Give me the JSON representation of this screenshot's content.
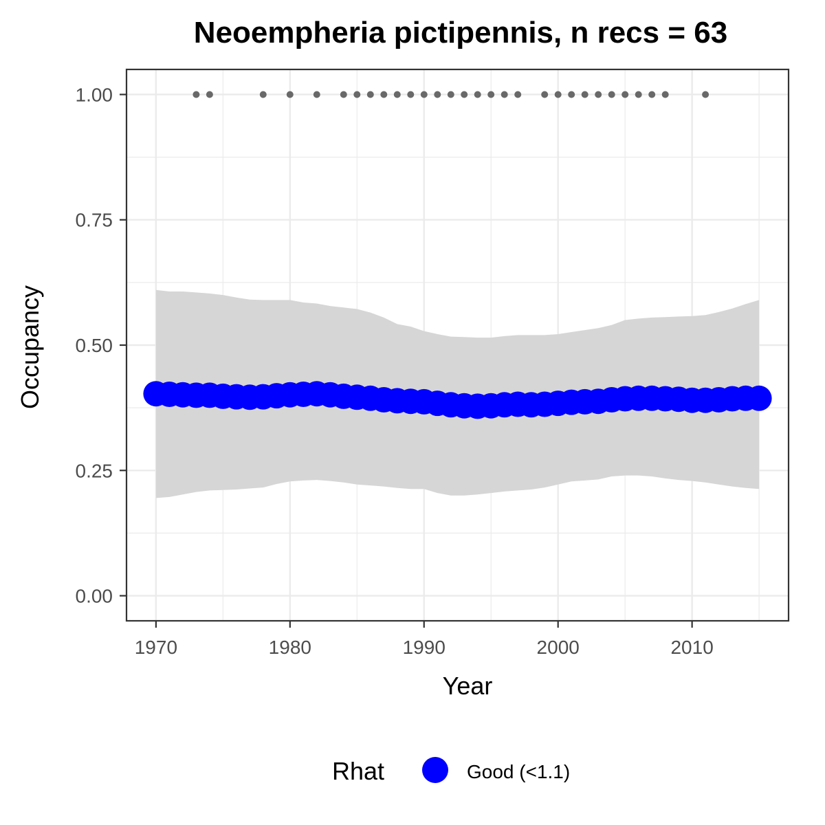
{
  "chart_data": {
    "type": "line",
    "title": "Neoempheria pictipennis, n recs = 63",
    "xlabel": "Year",
    "ylabel": "Occupancy",
    "xlim": [
      1967.8,
      2017.2
    ],
    "ylim": [
      -0.05,
      1.05
    ],
    "x_ticks": [
      1970,
      1980,
      1990,
      2000,
      2010
    ],
    "x_tick_labels": [
      "1970",
      "1980",
      "1990",
      "2000",
      "2010"
    ],
    "y_ticks": [
      0,
      0.25,
      0.5,
      0.75,
      1.0
    ],
    "y_tick_labels": [
      "0.00",
      "0.25",
      "0.50",
      "0.75",
      "1.00"
    ],
    "grid": true,
    "legend": {
      "title": "Rhat",
      "placement": "bottom",
      "entries": [
        {
          "label": "Good (<1.1)",
          "color": "#0000ff"
        }
      ]
    },
    "x": [
      1970,
      1971,
      1972,
      1973,
      1974,
      1975,
      1976,
      1977,
      1978,
      1979,
      1980,
      1981,
      1982,
      1983,
      1984,
      1985,
      1986,
      1987,
      1988,
      1989,
      1990,
      1991,
      1992,
      1993,
      1994,
      1995,
      1996,
      1997,
      1998,
      1999,
      2000,
      2001,
      2002,
      2003,
      2004,
      2005,
      2006,
      2007,
      2008,
      2009,
      2010,
      2011,
      2012,
      2013,
      2014,
      2015
    ],
    "series": [
      {
        "name": "Good (<1.1)",
        "color": "#0000ff",
        "values": [
          0.403,
          0.402,
          0.401,
          0.4,
          0.4,
          0.398,
          0.397,
          0.396,
          0.397,
          0.399,
          0.401,
          0.402,
          0.403,
          0.401,
          0.398,
          0.396,
          0.394,
          0.391,
          0.389,
          0.388,
          0.387,
          0.384,
          0.381,
          0.379,
          0.378,
          0.379,
          0.381,
          0.382,
          0.381,
          0.382,
          0.384,
          0.386,
          0.387,
          0.388,
          0.391,
          0.393,
          0.394,
          0.394,
          0.393,
          0.392,
          0.39,
          0.39,
          0.391,
          0.393,
          0.394,
          0.394
        ]
      }
    ],
    "ribbon": {
      "color": "#d6d6d6",
      "lower": [
        0.195,
        0.197,
        0.202,
        0.207,
        0.21,
        0.211,
        0.212,
        0.214,
        0.216,
        0.223,
        0.228,
        0.23,
        0.231,
        0.229,
        0.226,
        0.222,
        0.22,
        0.218,
        0.215,
        0.213,
        0.213,
        0.205,
        0.2,
        0.2,
        0.202,
        0.205,
        0.208,
        0.21,
        0.212,
        0.216,
        0.222,
        0.228,
        0.23,
        0.232,
        0.238,
        0.24,
        0.24,
        0.238,
        0.234,
        0.231,
        0.229,
        0.226,
        0.222,
        0.218,
        0.215,
        0.213
      ],
      "upper": [
        0.61,
        0.607,
        0.607,
        0.605,
        0.603,
        0.6,
        0.595,
        0.591,
        0.59,
        0.59,
        0.59,
        0.585,
        0.583,
        0.578,
        0.575,
        0.572,
        0.565,
        0.555,
        0.542,
        0.537,
        0.528,
        0.522,
        0.517,
        0.516,
        0.515,
        0.515,
        0.518,
        0.52,
        0.52,
        0.52,
        0.522,
        0.526,
        0.53,
        0.534,
        0.54,
        0.55,
        0.553,
        0.555,
        0.556,
        0.557,
        0.558,
        0.56,
        0.566,
        0.573,
        0.582,
        0.59
      ]
    },
    "records": {
      "color": "#696969",
      "y": 1.0,
      "x": [
        1973,
        1974,
        1978,
        1980,
        1982,
        1984,
        1985,
        1986,
        1987,
        1988,
        1989,
        1990,
        1991,
        1992,
        1993,
        1994,
        1995,
        1996,
        1997,
        1999,
        2000,
        2001,
        2002,
        2003,
        2004,
        2005,
        2006,
        2007,
        2008,
        2011
      ]
    }
  }
}
